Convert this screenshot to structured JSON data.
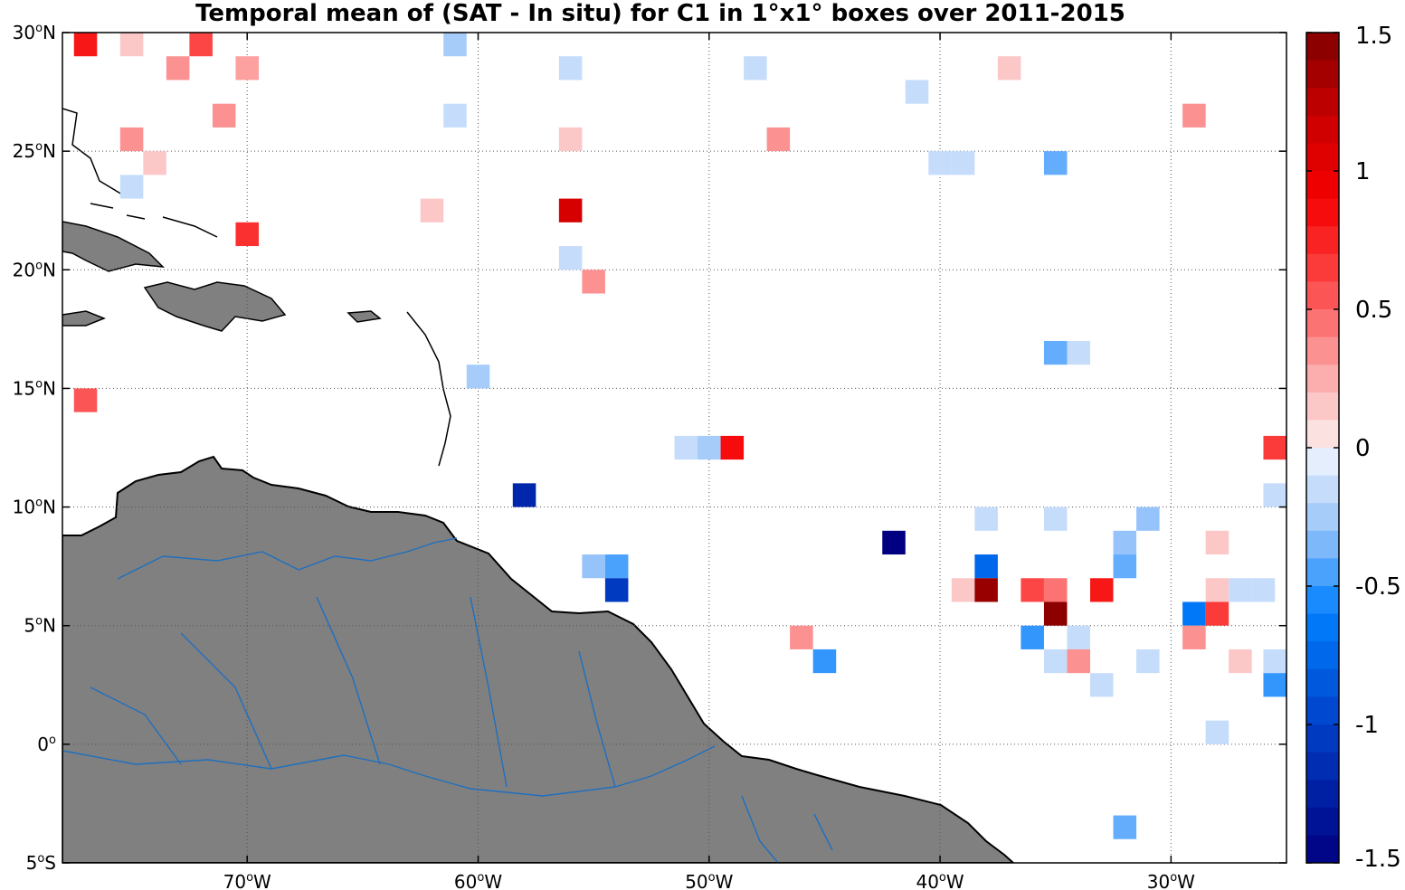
{
  "title": "Temporal mean of (SAT - In situ) for C1 in 1°x1° boxes over 2011-2015",
  "map": {
    "lon_range": [
      -78,
      -25
    ],
    "lat_range": [
      -5,
      30
    ],
    "lon_ticks": [
      {
        "value": -70,
        "label": "70",
        "suffix": "W"
      },
      {
        "value": -60,
        "label": "60",
        "suffix": "W"
      },
      {
        "value": -50,
        "label": "50",
        "suffix": "W"
      },
      {
        "value": -40,
        "label": "40",
        "suffix": "W"
      },
      {
        "value": -30,
        "label": "30",
        "suffix": "W"
      }
    ],
    "lat_ticks": [
      {
        "value": 30,
        "label": "30",
        "suffix": "N"
      },
      {
        "value": 25,
        "label": "25",
        "suffix": "N"
      },
      {
        "value": 20,
        "label": "20",
        "suffix": "N"
      },
      {
        "value": 15,
        "label": "15",
        "suffix": "N"
      },
      {
        "value": 10,
        "label": "10",
        "suffix": "N"
      },
      {
        "value": 5,
        "label": "5",
        "suffix": "N"
      },
      {
        "value": 0,
        "label": "0",
        "suffix": ""
      },
      {
        "value": -5,
        "label": "5",
        "suffix": "S"
      }
    ],
    "land_color": "#808080",
    "river_color": "#1f6fbf",
    "grid": true
  },
  "colorbar": {
    "min": -1.5,
    "max": 1.5,
    "levels": 30,
    "tick_values": [
      1.5,
      1,
      0.5,
      0,
      -0.5,
      -1,
      -1.5
    ],
    "tick_labels": [
      "1.5",
      "1",
      "0.5",
      "0",
      "-0.5",
      "-1",
      "-1.5"
    ]
  },
  "chart_data": {
    "type": "heatmap",
    "title": "Temporal mean of (SAT - In situ) for C1 in 1°x1° boxes over 2011-2015",
    "xlabel": "",
    "ylabel": "",
    "xlim": [
      -78,
      -25
    ],
    "ylim": [
      -5,
      30
    ],
    "value_range": [
      -1.5,
      1.5
    ],
    "cells": [
      {
        "lon": -77,
        "lat": 29.5,
        "value": 0.8
      },
      {
        "lon": -75,
        "lat": 29.5,
        "value": 0.15
      },
      {
        "lon": -72,
        "lat": 29.5,
        "value": 0.6
      },
      {
        "lon": -61,
        "lat": 29.5,
        "value": -0.25
      },
      {
        "lon": -73,
        "lat": 28.5,
        "value": 0.35
      },
      {
        "lon": -70,
        "lat": 28.5,
        "value": 0.3
      },
      {
        "lon": -56,
        "lat": 28.5,
        "value": -0.15
      },
      {
        "lon": -48,
        "lat": 28.5,
        "value": -0.15
      },
      {
        "lon": -37,
        "lat": 28.5,
        "value": 0.15
      },
      {
        "lon": -41,
        "lat": 27.5,
        "value": -0.15
      },
      {
        "lon": -71,
        "lat": 26.5,
        "value": 0.35
      },
      {
        "lon": -61,
        "lat": 26.5,
        "value": -0.15
      },
      {
        "lon": -29,
        "lat": 26.5,
        "value": 0.35
      },
      {
        "lon": -75,
        "lat": 25.5,
        "value": 0.35
      },
      {
        "lon": -56,
        "lat": 25.5,
        "value": 0.15
      },
      {
        "lon": -47,
        "lat": 25.5,
        "value": 0.35
      },
      {
        "lon": -74,
        "lat": 24.5,
        "value": 0.15
      },
      {
        "lon": -40,
        "lat": 24.5,
        "value": -0.15
      },
      {
        "lon": -39,
        "lat": 24.5,
        "value": -0.15
      },
      {
        "lon": -35,
        "lat": 24.5,
        "value": -0.4
      },
      {
        "lon": -75,
        "lat": 23.5,
        "value": -0.15
      },
      {
        "lon": -62,
        "lat": 22.5,
        "value": 0.15
      },
      {
        "lon": -56,
        "lat": 22.5,
        "value": 1.1
      },
      {
        "lon": -70,
        "lat": 21.5,
        "value": 0.7
      },
      {
        "lon": -56,
        "lat": 20.5,
        "value": -0.15
      },
      {
        "lon": -55,
        "lat": 19.5,
        "value": 0.35
      },
      {
        "lon": -35,
        "lat": 16.5,
        "value": -0.4
      },
      {
        "lon": -34,
        "lat": 16.5,
        "value": -0.15
      },
      {
        "lon": -60,
        "lat": 15.5,
        "value": -0.25
      },
      {
        "lon": -77,
        "lat": 14.5,
        "value": 0.55
      },
      {
        "lon": -51,
        "lat": 12.5,
        "value": -0.15
      },
      {
        "lon": -50,
        "lat": 12.5,
        "value": -0.25
      },
      {
        "lon": -49,
        "lat": 12.5,
        "value": 0.85
      },
      {
        "lon": -25.5,
        "lat": 12.5,
        "value": 0.65
      },
      {
        "lon": -58,
        "lat": 10.5,
        "value": -1.2
      },
      {
        "lon": -25.5,
        "lat": 10.5,
        "value": -0.15
      },
      {
        "lon": -38,
        "lat": 9.5,
        "value": -0.15
      },
      {
        "lon": -35,
        "lat": 9.5,
        "value": -0.15
      },
      {
        "lon": -31,
        "lat": 9.5,
        "value": -0.3
      },
      {
        "lon": -42,
        "lat": 8.5,
        "value": -1.5
      },
      {
        "lon": -32,
        "lat": 8.5,
        "value": -0.3
      },
      {
        "lon": -28,
        "lat": 8.5,
        "value": 0.15
      },
      {
        "lon": -55,
        "lat": 7.5,
        "value": -0.3
      },
      {
        "lon": -54,
        "lat": 7.5,
        "value": -0.45
      },
      {
        "lon": -38,
        "lat": 7.5,
        "value": -0.75
      },
      {
        "lon": -32,
        "lat": 7.5,
        "value": -0.4
      },
      {
        "lon": -54,
        "lat": 6.5,
        "value": -1.05
      },
      {
        "lon": -39,
        "lat": 6.5,
        "value": 0.15
      },
      {
        "lon": -38,
        "lat": 6.5,
        "value": 1.4
      },
      {
        "lon": -36,
        "lat": 6.5,
        "value": 0.6
      },
      {
        "lon": -35,
        "lat": 6.5,
        "value": 0.45
      },
      {
        "lon": -33,
        "lat": 6.5,
        "value": 0.8
      },
      {
        "lon": -28,
        "lat": 6.5,
        "value": 0.15
      },
      {
        "lon": -27,
        "lat": 6.5,
        "value": -0.15
      },
      {
        "lon": -26,
        "lat": 6.5,
        "value": -0.15
      },
      {
        "lon": -35,
        "lat": 5.5,
        "value": 1.45
      },
      {
        "lon": -29,
        "lat": 5.5,
        "value": -0.65
      },
      {
        "lon": -28,
        "lat": 5.5,
        "value": 0.65
      },
      {
        "lon": -46,
        "lat": 4.5,
        "value": 0.35
      },
      {
        "lon": -36,
        "lat": 4.5,
        "value": -0.5
      },
      {
        "lon": -34,
        "lat": 4.5,
        "value": -0.15
      },
      {
        "lon": -29,
        "lat": 4.5,
        "value": 0.35
      },
      {
        "lon": -45,
        "lat": 3.5,
        "value": -0.5
      },
      {
        "lon": -35,
        "lat": 3.5,
        "value": -0.15
      },
      {
        "lon": -34,
        "lat": 3.5,
        "value": 0.35
      },
      {
        "lon": -31,
        "lat": 3.5,
        "value": -0.15
      },
      {
        "lon": -27,
        "lat": 3.5,
        "value": 0.15
      },
      {
        "lon": -25.5,
        "lat": 3.5,
        "value": -0.15
      },
      {
        "lon": -33,
        "lat": 2.5,
        "value": -0.15
      },
      {
        "lon": -25.5,
        "lat": 2.5,
        "value": -0.5
      },
      {
        "lon": -28,
        "lat": 0.5,
        "value": -0.15
      },
      {
        "lon": -32,
        "lat": -3.5,
        "value": -0.4
      }
    ]
  }
}
